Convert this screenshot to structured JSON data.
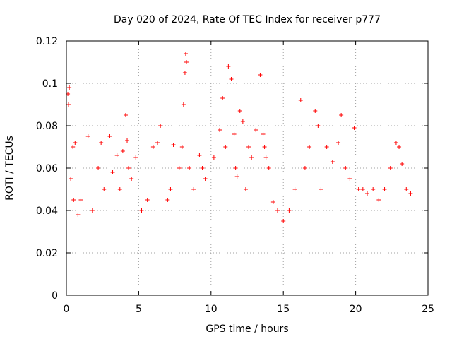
{
  "chart_data": {
    "type": "scatter",
    "title": "Day 020 of 2024, Rate Of TEC Index for receiver p777",
    "xlabel": "GPS time / hours",
    "ylabel": "ROTI / TECUs",
    "xlim": [
      0,
      25
    ],
    "ylim": [
      0,
      0.12
    ],
    "x_ticks": [
      "0",
      "5",
      "10",
      "15",
      "20",
      "25"
    ],
    "y_ticks": [
      "0",
      "0.02",
      "0.04",
      "0.06",
      "0.08",
      "0.1",
      "0.12"
    ],
    "x_tick_values": [
      0,
      5,
      10,
      15,
      20,
      25
    ],
    "y_tick_values": [
      0,
      0.02,
      0.04,
      0.06,
      0.08,
      0.1,
      0.12
    ],
    "grid": true,
    "marker": "+",
    "color": "#ff0000",
    "series": [
      {
        "name": "ROTI",
        "x": [
          0.1,
          0.15,
          0.2,
          0.3,
          0.45,
          0.5,
          0.6,
          0.8,
          1.0,
          1.5,
          1.8,
          2.2,
          2.4,
          2.6,
          3.0,
          3.2,
          3.5,
          3.7,
          3.9,
          4.1,
          4.2,
          4.3,
          4.5,
          4.8,
          5.2,
          5.6,
          6.0,
          6.3,
          6.5,
          7.0,
          7.2,
          7.4,
          7.8,
          8.0,
          8.1,
          8.2,
          8.25,
          8.3,
          8.5,
          8.8,
          9.2,
          9.4,
          9.6,
          10.2,
          10.6,
          10.8,
          11.0,
          11.2,
          11.4,
          11.6,
          11.7,
          11.8,
          12.0,
          12.2,
          12.4,
          12.6,
          12.8,
          13.1,
          13.4,
          13.6,
          13.7,
          13.8,
          14.0,
          14.3,
          14.6,
          15.0,
          15.4,
          15.8,
          16.2,
          16.5,
          16.8,
          17.2,
          17.4,
          17.6,
          18.0,
          18.4,
          18.8,
          19.0,
          19.3,
          19.6,
          19.9,
          20.2,
          20.5,
          20.8,
          21.2,
          21.6,
          22.0,
          22.4,
          22.8,
          23.0,
          23.2,
          23.5,
          23.8
        ],
        "y": [
          0.095,
          0.09,
          0.098,
          0.055,
          0.07,
          0.045,
          0.072,
          0.038,
          0.045,
          0.075,
          0.04,
          0.06,
          0.072,
          0.05,
          0.075,
          0.058,
          0.066,
          0.05,
          0.068,
          0.085,
          0.073,
          0.06,
          0.055,
          0.065,
          0.04,
          0.045,
          0.07,
          0.072,
          0.08,
          0.045,
          0.05,
          0.071,
          0.06,
          0.07,
          0.09,
          0.105,
          0.114,
          0.11,
          0.06,
          0.05,
          0.066,
          0.06,
          0.055,
          0.065,
          0.078,
          0.093,
          0.07,
          0.108,
          0.102,
          0.076,
          0.06,
          0.056,
          0.087,
          0.082,
          0.05,
          0.07,
          0.065,
          0.078,
          0.104,
          0.076,
          0.07,
          0.065,
          0.06,
          0.044,
          0.04,
          0.035,
          0.04,
          0.05,
          0.092,
          0.06,
          0.07,
          0.087,
          0.08,
          0.05,
          0.07,
          0.063,
          0.072,
          0.085,
          0.06,
          0.055,
          0.079,
          0.05,
          0.05,
          0.048,
          0.05,
          0.045,
          0.05,
          0.06,
          0.072,
          0.07,
          0.062,
          0.05,
          0.048
        ]
      }
    ]
  }
}
